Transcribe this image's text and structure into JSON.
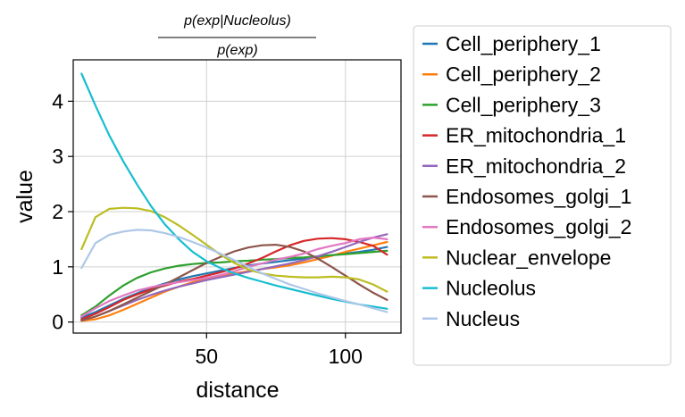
{
  "chart_data": {
    "type": "line",
    "title_numerator": "p(exp|Nucleolus)",
    "title_denominator": "p(exp)",
    "xlabel": "distance",
    "ylabel": "value",
    "xlim": [
      2,
      120
    ],
    "ylim": [
      -0.2,
      4.75
    ],
    "xticks": [
      50,
      100
    ],
    "yticks": [
      0,
      1,
      2,
      3,
      4
    ],
    "grid": true,
    "legend_position": "outside-right",
    "x": [
      5,
      10,
      15,
      20,
      25,
      30,
      35,
      40,
      45,
      50,
      55,
      60,
      65,
      70,
      75,
      80,
      85,
      90,
      95,
      100,
      105,
      110,
      115
    ],
    "series": [
      {
        "name": "Cell_periphery_1",
        "color": "#1f77b4",
        "values": [
          0.08,
          0.18,
          0.3,
          0.42,
          0.52,
          0.62,
          0.7,
          0.77,
          0.83,
          0.88,
          0.93,
          0.98,
          1.02,
          1.06,
          1.09,
          1.12,
          1.15,
          1.18,
          1.21,
          1.24,
          1.27,
          1.31,
          1.36
        ]
      },
      {
        "name": "Cell_periphery_2",
        "color": "#ff7f0e",
        "values": [
          0.02,
          0.05,
          0.12,
          0.22,
          0.33,
          0.44,
          0.55,
          0.64,
          0.72,
          0.78,
          0.84,
          0.88,
          0.92,
          0.96,
          0.99,
          1.03,
          1.08,
          1.14,
          1.2,
          1.27,
          1.33,
          1.39,
          1.45
        ]
      },
      {
        "name": "Cell_periphery_3",
        "color": "#2ca02c",
        "values": [
          0.12,
          0.28,
          0.48,
          0.66,
          0.8,
          0.9,
          0.97,
          1.02,
          1.05,
          1.07,
          1.08,
          1.1,
          1.11,
          1.13,
          1.14,
          1.16,
          1.17,
          1.19,
          1.21,
          1.23,
          1.25,
          1.27,
          1.29
        ]
      },
      {
        "name": "ER_mitochondria_1",
        "color": "#d62728",
        "values": [
          0.05,
          0.15,
          0.27,
          0.4,
          0.5,
          0.59,
          0.66,
          0.73,
          0.78,
          0.84,
          0.9,
          0.97,
          1.06,
          1.16,
          1.28,
          1.39,
          1.47,
          1.51,
          1.52,
          1.5,
          1.45,
          1.38,
          1.22
        ]
      },
      {
        "name": "ER_mitochondria_2",
        "color": "#9467bd",
        "values": [
          0.03,
          0.1,
          0.2,
          0.3,
          0.4,
          0.49,
          0.57,
          0.64,
          0.7,
          0.76,
          0.81,
          0.86,
          0.91,
          0.96,
          1.01,
          1.06,
          1.12,
          1.19,
          1.27,
          1.36,
          1.45,
          1.53,
          1.59
        ]
      },
      {
        "name": "Endosomes_golgi_1",
        "color": "#8c564b",
        "values": [
          0.03,
          0.1,
          0.2,
          0.32,
          0.44,
          0.56,
          0.68,
          0.81,
          0.94,
          1.07,
          1.18,
          1.28,
          1.35,
          1.39,
          1.4,
          1.36,
          1.28,
          1.15,
          1.0,
          0.84,
          0.68,
          0.53,
          0.4
        ]
      },
      {
        "name": "Endosomes_golgi_2",
        "color": "#e377c2",
        "values": [
          0.1,
          0.25,
          0.38,
          0.48,
          0.57,
          0.63,
          0.68,
          0.72,
          0.76,
          0.8,
          0.85,
          0.92,
          1.0,
          1.06,
          1.13,
          1.18,
          1.24,
          1.32,
          1.38,
          1.43,
          1.5,
          1.53,
          1.5
        ]
      },
      {
        "name": "Nuclear_envelope",
        "color": "#bcbd22",
        "values": [
          1.32,
          1.9,
          2.05,
          2.07,
          2.06,
          2.01,
          1.9,
          1.75,
          1.58,
          1.4,
          1.22,
          1.07,
          0.95,
          0.88,
          0.84,
          0.82,
          0.81,
          0.81,
          0.82,
          0.81,
          0.77,
          0.68,
          0.55
        ]
      },
      {
        "name": "Nucleolus",
        "color": "#17becf",
        "values": [
          4.5,
          3.92,
          3.38,
          2.91,
          2.49,
          2.1,
          1.77,
          1.5,
          1.27,
          1.1,
          0.98,
          0.88,
          0.8,
          0.73,
          0.66,
          0.6,
          0.54,
          0.48,
          0.42,
          0.37,
          0.32,
          0.28,
          0.24
        ]
      },
      {
        "name": "Nucleus",
        "color": "#aec7e8",
        "values": [
          0.98,
          1.43,
          1.58,
          1.64,
          1.67,
          1.66,
          1.61,
          1.54,
          1.45,
          1.35,
          1.24,
          1.12,
          1.0,
          0.88,
          0.78,
          0.68,
          0.6,
          0.52,
          0.45,
          0.38,
          0.32,
          0.25,
          0.18
        ]
      }
    ]
  }
}
